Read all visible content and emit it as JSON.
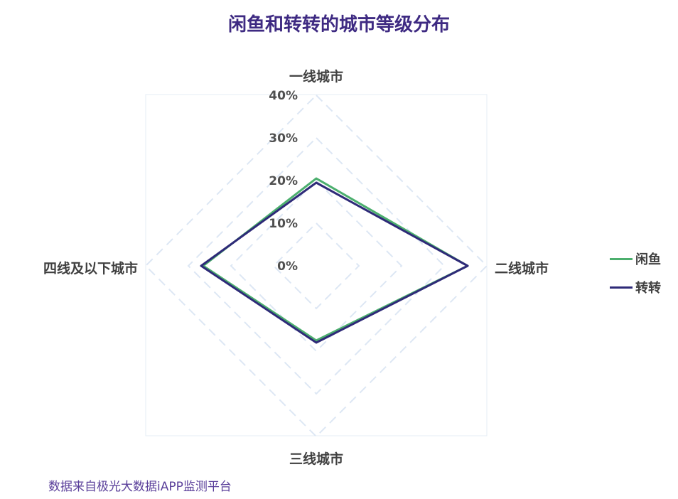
{
  "title": "闲鱼和转转的城市等级分布",
  "source": "数据来自极光大数据iAPP监测平台",
  "chart_data": {
    "type": "radar",
    "axes": [
      "一线城市",
      "二线城市",
      "三线城市",
      "四线及以下城市"
    ],
    "radial_ticks": [
      "0%",
      "10%",
      "20%",
      "30%",
      "40%"
    ],
    "rmax": 40,
    "grid": "dashed",
    "legend_position": "right",
    "series": [
      {
        "name": "闲鱼",
        "color": "#4caf6e",
        "values": [
          20.5,
          35.5,
          17.5,
          26.5
        ]
      },
      {
        "name": "转转",
        "color": "#2e2a78",
        "values": [
          19.5,
          35.5,
          18.0,
          27.0
        ]
      }
    ]
  }
}
